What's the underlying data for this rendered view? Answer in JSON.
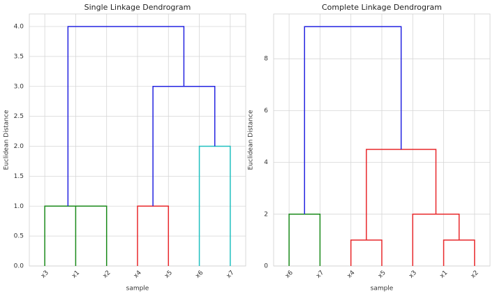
{
  "chart_data": [
    {
      "type": "dendrogram",
      "title": "Single Linkage Dendrogram",
      "xlabel": "sample",
      "ylabel": "Euclidean Distance",
      "categories": [
        "x3",
        "x1",
        "x2",
        "x4",
        "x5",
        "x6",
        "x7"
      ],
      "links": [
        {
          "left": 1,
          "right": 2,
          "height": 1.0,
          "color": "#1a8a1a"
        },
        {
          "left": 0,
          "right": 7,
          "height": 1.0,
          "color": "#1a8a1a"
        },
        {
          "left": 3,
          "right": 4,
          "height": 1.0,
          "color": "#e8282b"
        },
        {
          "left": 5,
          "right": 6,
          "height": 2.0,
          "color": "#1fbfbf"
        },
        {
          "left": 9,
          "right": 10,
          "height": 3.0,
          "color": "#2323e0"
        },
        {
          "left": 8,
          "right": 11,
          "height": 4.0,
          "color": "#2323e0"
        }
      ],
      "ylim": [
        0,
        4.21
      ],
      "yticks": [
        {
          "value": 0,
          "label": "0.0"
        },
        0.5,
        {
          "value": 1,
          "label": "1.0"
        },
        1.5,
        {
          "value": 2,
          "label": "2.0"
        },
        2.5,
        {
          "value": 3,
          "label": "3.0"
        },
        3.5,
        {
          "value": 4,
          "label": "4.0"
        }
      ],
      "grid": true
    },
    {
      "type": "dendrogram",
      "title": "Complete Linkage Dendrogram",
      "xlabel": "sample",
      "ylabel": "Euclidean Distance",
      "categories": [
        "x6",
        "x7",
        "x4",
        "x5",
        "x3",
        "x1",
        "x2"
      ],
      "links": [
        {
          "left": 0,
          "right": 1,
          "height": 2.0,
          "color": "#1a8a1a"
        },
        {
          "left": 2,
          "right": 3,
          "height": 1.0,
          "color": "#e8282b"
        },
        {
          "left": 5,
          "right": 6,
          "height": 1.0,
          "color": "#e8282b"
        },
        {
          "left": 4,
          "right": 9,
          "height": 2.0,
          "color": "#e8282b"
        },
        {
          "left": 8,
          "right": 10,
          "height": 4.5,
          "color": "#e8282b"
        },
        {
          "left": 7,
          "right": 11,
          "height": 9.24,
          "color": "#2323e0"
        }
      ],
      "ylim": [
        0,
        9.73
      ],
      "yticks": [
        0,
        2,
        4,
        6,
        8
      ],
      "grid": true
    }
  ]
}
